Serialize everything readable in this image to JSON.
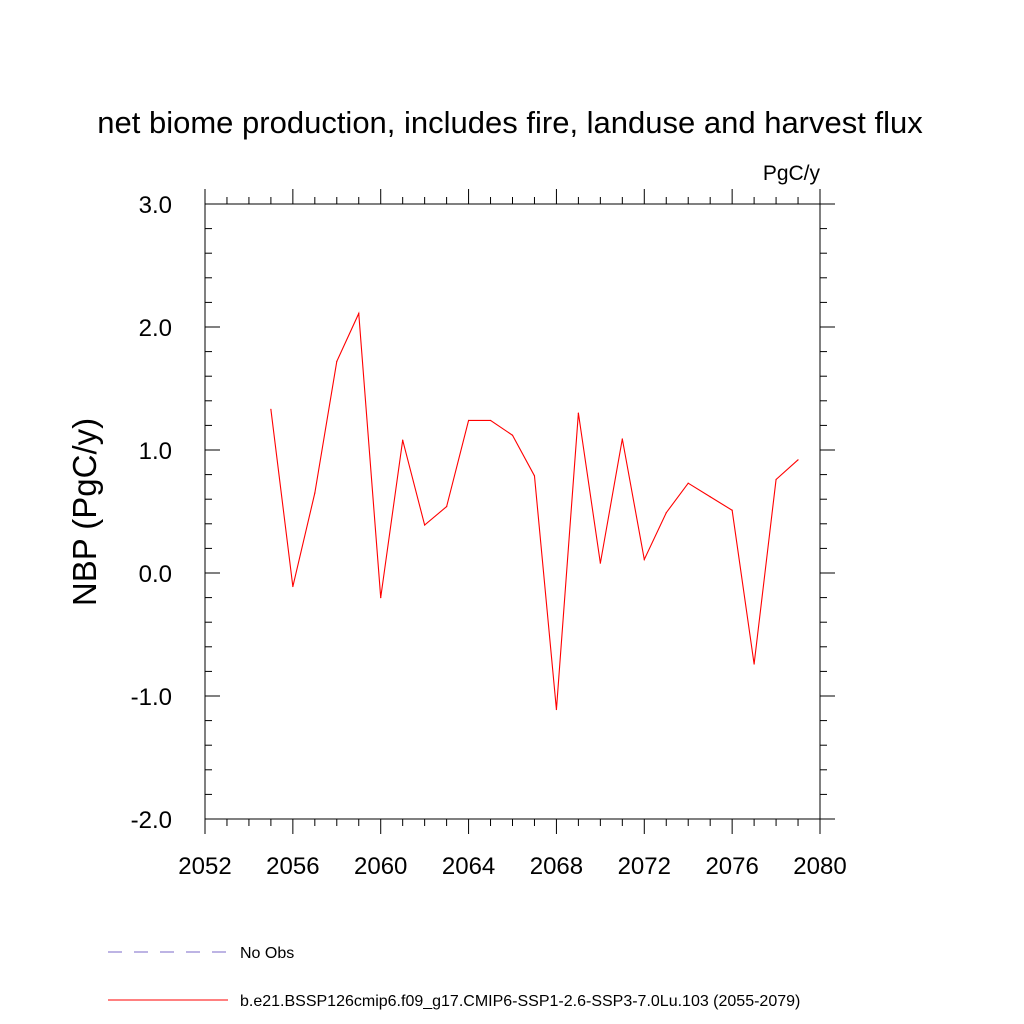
{
  "chart_data": {
    "type": "line",
    "title": "net biome production, includes fire, landuse and harvest flux",
    "units": "PgC/y",
    "ylabel": "NBP  (PgC/y)",
    "xlabel": "",
    "xlim": [
      2052,
      2080
    ],
    "ylim": [
      -2.0,
      3.0
    ],
    "x_major_ticks": [
      "2052",
      "2056",
      "2060",
      "2064",
      "2068",
      "2072",
      "2076",
      "2080"
    ],
    "y_major_ticks": [
      "-2.0",
      "-1.0",
      "0.0",
      "1.0",
      "2.0",
      "3.0"
    ],
    "grid": false,
    "legend_position": "bottom",
    "legend": [
      {
        "label": "No Obs",
        "color": "#7b68c8",
        "style": "dashed"
      },
      {
        "label": "b.e21.BSSP126cmip6.f09_g17.CMIP6-SSP1-2.6-SSP3-7.0Lu.103 (2055-2079)",
        "color": "#ff0000",
        "style": "solid"
      }
    ],
    "series": [
      {
        "name": "b.e21.BSSP126cmip6.f09_g17.CMIP6-SSP1-2.6-SSP3-7.0Lu.103 (2055-2079)",
        "color": "#ff0000",
        "x": [
          2055,
          2056,
          2057,
          2058,
          2059,
          2060,
          2061,
          2062,
          2063,
          2064,
          2065,
          2066,
          2067,
          2068,
          2069,
          2070,
          2071,
          2072,
          2073,
          2074,
          2075,
          2076,
          2077,
          2078,
          2079
        ],
        "y": [
          1.33,
          -0.11,
          0.65,
          1.72,
          2.11,
          -0.2,
          1.08,
          0.39,
          0.54,
          1.24,
          1.24,
          1.12,
          0.79,
          -1.11,
          1.3,
          0.08,
          1.09,
          0.11,
          0.49,
          0.73,
          0.62,
          0.51,
          -0.74,
          0.76,
          0.92
        ]
      }
    ]
  }
}
